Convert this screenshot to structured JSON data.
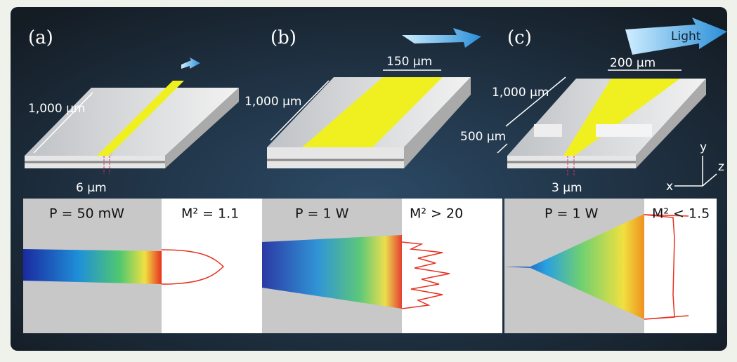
{
  "panels": [
    {
      "label": "(a)",
      "dimensions": [
        "1,000 µm",
        "6 µm"
      ],
      "power": "P = 50 mW",
      "beam_quality": "M² = 1.1"
    },
    {
      "label": "(b)",
      "dimensions": [
        "1,000 µm",
        "150 µm"
      ],
      "power": "P = 1 W",
      "beam_quality": "M² > 20"
    },
    {
      "label": "(c)",
      "dimensions": [
        "1,000 µm",
        "200 µm",
        "500 µm",
        "3 µm"
      ],
      "power": "P = 1 W",
      "beam_quality": "M² < 1.5",
      "arrow_label": "Light"
    }
  ],
  "axes": {
    "x": "x",
    "y": "y",
    "z": "z"
  }
}
